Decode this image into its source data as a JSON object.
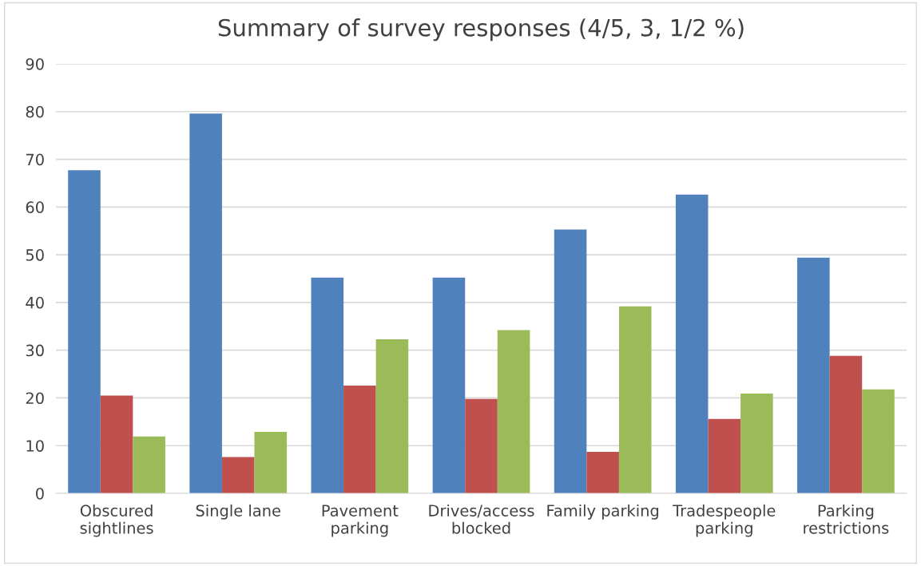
{
  "chart_data": {
    "type": "bar",
    "title": "Summary of survey responses (4/5, 3, 1/2 %)",
    "categories": [
      "Obscured\nsightlines",
      "Single lane",
      "Pavement\nparking",
      "Drives/access\nblocked",
      "Family parking",
      "Tradespeople\nparking",
      "Parking\nrestrictions"
    ],
    "series": [
      {
        "color": "#4f81bd",
        "values": [
          67.7,
          79.6,
          45.2,
          45.2,
          55.3,
          62.6,
          49.4
        ]
      },
      {
        "color": "#c0504d",
        "values": [
          20.5,
          7.6,
          22.6,
          19.8,
          8.7,
          15.6,
          28.8
        ]
      },
      {
        "color": "#9bbb59",
        "values": [
          11.9,
          12.9,
          32.3,
          34.2,
          39.2,
          20.9,
          21.8
        ]
      }
    ],
    "ylim": [
      0,
      90
    ],
    "yticks": [
      0,
      10,
      20,
      30,
      40,
      50,
      60,
      70,
      80,
      90
    ],
    "grid": "y"
  }
}
